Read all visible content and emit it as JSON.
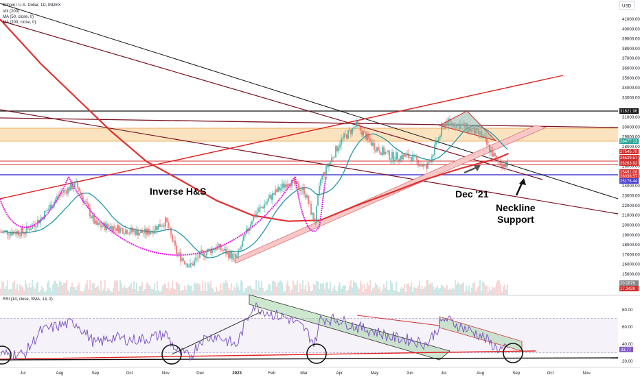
{
  "title": "Bitcoin / U.S. Dollar, 1D, INDEX",
  "legend": [
    "Vol (200)",
    "MA (50, close, 0)",
    "MA (200, close, 0)"
  ],
  "currency_label": "USD",
  "rsi_label": "RSI (14, close, SMA, 14, 2)",
  "annotations": {
    "inverse_hs": "Inverse H&S",
    "dec21": "Dec '21",
    "neckline_1": "Neckline",
    "neckline_2": "Support"
  },
  "colors": {
    "candle_up": "#26a69a",
    "candle_down": "#ef5350",
    "ma50": "#2196a6",
    "ma200": "#e03030",
    "trend_dark": "#7a1020",
    "rsi_line": "#7e57c2",
    "horizontal_support": "#4b3fd1",
    "head_shoulders": "#e020e0",
    "zone_fill": "#fbe3c0"
  },
  "chart_data": {
    "type": "line",
    "title": "Bitcoin / U.S. Dollar, 1D, INDEX",
    "xlabel": "",
    "ylabel": "",
    "x_ticks": [
      "Jul",
      "Aug",
      "Sep",
      "Oct",
      "Nov",
      "Dec",
      "2023",
      "Feb",
      "Mar",
      "Apr",
      "May",
      "Jun",
      "Jul",
      "Aug",
      "Sep",
      "Oct",
      "Nov"
    ],
    "y_ticks": [
      15000,
      16000,
      17000,
      18000,
      19000,
      20000,
      21000,
      22000,
      23000,
      24000,
      25000,
      26000,
      27000,
      28000,
      29000,
      30000,
      31000,
      33000,
      34000,
      35000,
      36000,
      37000,
      38000,
      39000,
      40000,
      41000
    ],
    "ylim": [
      14500,
      42500
    ],
    "x": [
      "2022-07-01",
      "2022-07-15",
      "2022-08-01",
      "2022-08-15",
      "2022-09-01",
      "2022-09-15",
      "2022-10-01",
      "2022-10-15",
      "2022-11-01",
      "2022-11-10",
      "2022-11-22",
      "2022-12-01",
      "2022-12-15",
      "2023-01-01",
      "2023-01-15",
      "2023-02-01",
      "2023-02-15",
      "2023-03-01",
      "2023-03-10",
      "2023-03-15",
      "2023-04-01",
      "2023-04-15",
      "2023-05-01",
      "2023-05-15",
      "2023-06-01",
      "2023-06-15",
      "2023-07-01",
      "2023-07-15",
      "2023-08-01",
      "2023-08-15",
      "2023-08-25"
    ],
    "series": [
      {
        "values": [
          19300,
          20600,
          23200,
          24200,
          20000,
          19800,
          19400,
          19200,
          20400,
          17200,
          15800,
          17000,
          17800,
          16600,
          20800,
          23000,
          24500,
          23500,
          20200,
          24600,
          28500,
          30200,
          28000,
          27000,
          27000,
          25800,
          30500,
          30200,
          29200,
          26500,
          26000
        ]
      }
    ],
    "price_labels": [
      "31621.96",
      "28477.13",
      "27545.70",
      "26529.57",
      "26263.92",
      "25491.08",
      "26038.57",
      "25176.44",
      "20.087K",
      "17.342K"
    ],
    "rsi": {
      "label": "RSI (14, close, SMA, 14, 2)",
      "y_ticks": [
        20,
        40,
        60,
        80
      ],
      "ylim": [
        15,
        90
      ],
      "upper_band": 70,
      "lower_band": 30,
      "current": "33.77",
      "values": [
        28,
        55,
        62,
        65,
        40,
        48,
        45,
        46,
        52,
        32,
        25,
        45,
        50,
        38,
        85,
        75,
        70,
        58,
        40,
        70,
        68,
        60,
        55,
        48,
        45,
        40,
        70,
        60,
        50,
        35,
        33
      ]
    },
    "grid": false,
    "legend_position": "top-left"
  }
}
